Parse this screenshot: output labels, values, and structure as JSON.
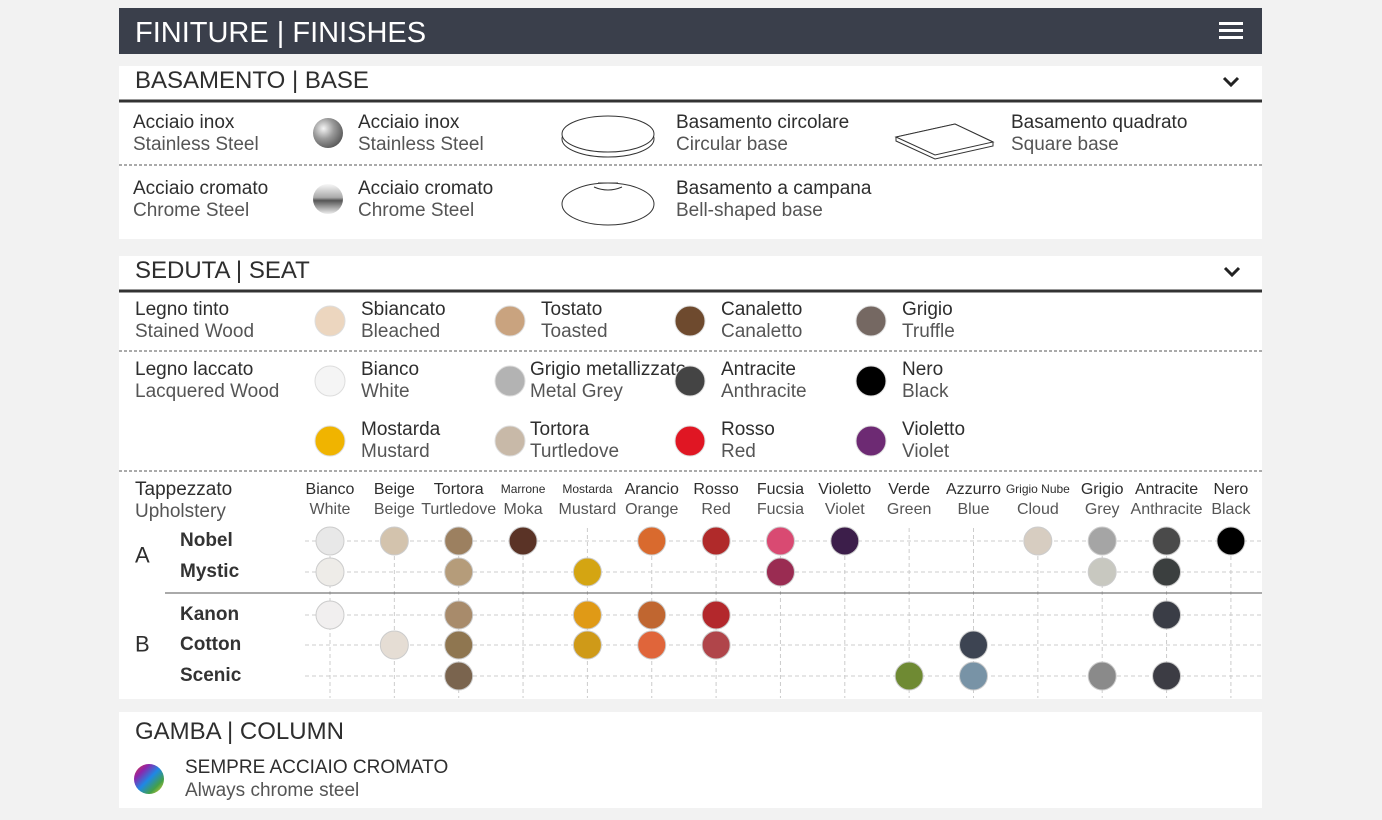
{
  "header": {
    "title": "FINITURE",
    "subtitle": "| FINISHES"
  },
  "base": {
    "title": "BASAMENTO",
    "subtitle": "| BASE",
    "rows": [
      {
        "label": "Acciaio inox",
        "sublabel": "Stainless Steel",
        "items": [
          {
            "name": "Acciaio inox",
            "sub": "Stainless Steel"
          },
          {
            "name": "Basamento circolare",
            "sub": "Circular base"
          },
          {
            "name": "Basamento quadrato",
            "sub": "Square base"
          }
        ]
      },
      {
        "label": "Acciaio cromato",
        "sublabel": "Chrome Steel",
        "items": [
          {
            "name": "Acciaio cromato",
            "sub": "Chrome Steel"
          },
          {
            "name": "Basamento a campana",
            "sub": "Bell-shaped base"
          }
        ]
      }
    ]
  },
  "seat": {
    "title": "SEDUTA",
    "subtitle": "| SEAT",
    "rows": [
      {
        "label": "Legno tinto",
        "sublabel": "Stained Wood",
        "swatches": [
          {
            "name": "Sbiancato",
            "sub": "Bleached",
            "color": "#ecd6bf"
          },
          {
            "name": "Tostato",
            "sub": "Toasted",
            "color": "#c9a37f"
          },
          {
            "name": "Canaletto",
            "sub": "Canaletto",
            "color": "#6e4a2e"
          },
          {
            "name": "Grigio",
            "sub": "Truffle",
            "color": "#756862"
          }
        ]
      },
      {
        "label": "Legno laccato",
        "sublabel": "Lacquered Wood",
        "swatches": [
          {
            "name": "Bianco",
            "sub": "White",
            "color": "#f5f5f5"
          },
          {
            "name": "Grigio metallizzato",
            "sub": "Metal Grey",
            "color": "#b3b3b3"
          },
          {
            "name": "Antracite",
            "sub": "Anthracite",
            "color": "#444444"
          },
          {
            "name": "Nero",
            "sub": "Black",
            "color": "#000000"
          },
          {
            "name": "Mostarda",
            "sub": "Mustard",
            "color": "#f0b400"
          },
          {
            "name": "Tortora",
            "sub": "Turtledove",
            "color": "#c8b9a8"
          },
          {
            "name": "Rosso",
            "sub": "Red",
            "color": "#e01623"
          },
          {
            "name": "Violetto",
            "sub": "Violet",
            "color": "#6d2a73"
          }
        ]
      }
    ],
    "upholstery": {
      "label": "Tappezzato",
      "sublabel": "Upholstery",
      "columns": [
        {
          "name": "Bianco",
          "sub": "White"
        },
        {
          "name": "Beige",
          "sub": "Beige"
        },
        {
          "name": "Tortora",
          "sub": "Turtledove"
        },
        {
          "name": "Marrone",
          "sub": "Moka"
        },
        {
          "name": "Mostarda",
          "sub": "Mustard"
        },
        {
          "name": "Arancio",
          "sub": "Orange"
        },
        {
          "name": "Rosso",
          "sub": "Red"
        },
        {
          "name": "Fucsia",
          "sub": "Fucsia"
        },
        {
          "name": "Violetto",
          "sub": "Violet"
        },
        {
          "name": "Verde",
          "sub": "Green"
        },
        {
          "name": "Azzurro",
          "sub": "Blue"
        },
        {
          "name": "Grigio Nube",
          "sub": "Cloud"
        },
        {
          "name": "Grigio",
          "sub": "Grey"
        },
        {
          "name": "Antracite",
          "sub": "Anthracite"
        },
        {
          "name": "Nero",
          "sub": "Black"
        }
      ],
      "groups": [
        {
          "name": "A",
          "fabrics": [
            {
              "name": "Nobel",
              "colors": [
                "#e8e8e8",
                "#d3c3ad",
                "#9c8060",
                "#5a3326",
                null,
                "#d96a2e",
                "#b02a2a",
                "#d94a72",
                "#3c1e4a",
                null,
                null,
                "#d7cdc1",
                "#a5a5a5",
                "#4a4a4a",
                "#000000"
              ]
            },
            {
              "name": "Mystic",
              "colors": [
                "#eeece8",
                null,
                "#b59c7a",
                null,
                "#d4a512",
                null,
                null,
                "#9a2c52",
                null,
                null,
                null,
                null,
                "#c8c8c0",
                "#3b3f3f",
                null
              ]
            }
          ]
        },
        {
          "name": "B",
          "fabrics": [
            {
              "name": "Kanon",
              "colors": [
                "#f1efef",
                null,
                "#a88b6b",
                null,
                "#e09a16",
                "#c06630",
                "#b3282c",
                null,
                null,
                null,
                null,
                null,
                null,
                "#3a3d46",
                null
              ]
            },
            {
              "name": "Cotton",
              "colors": [
                null,
                "#e5ddd4",
                "#8f7650",
                null,
                "#cf9a18",
                "#e0653a",
                "#b0454a",
                null,
                null,
                null,
                "#3d4452",
                null,
                null,
                null,
                null
              ]
            },
            {
              "name": "Scenic",
              "colors": [
                null,
                null,
                "#7a644e",
                null,
                null,
                null,
                null,
                null,
                null,
                "#6f8a33",
                "#7893a6",
                null,
                "#8a8a8a",
                "#3c3c44",
                null
              ]
            }
          ]
        }
      ]
    }
  },
  "column": {
    "title": "GAMBA",
    "subtitle": "| COLUMN",
    "name": "SEMPRE ACCIAIO CROMATO",
    "sub": "Always chrome steel"
  }
}
